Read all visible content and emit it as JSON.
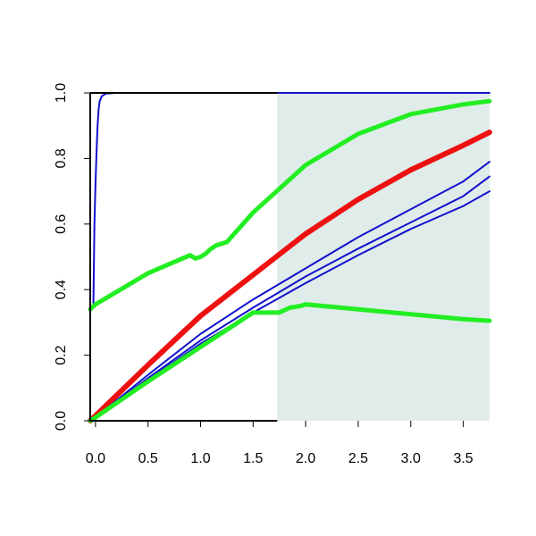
{
  "chart_data": {
    "type": "line",
    "title": "",
    "xlabel": "",
    "ylabel": "",
    "xlim": [
      -0.05,
      3.75
    ],
    "ylim": [
      0,
      1
    ],
    "x_ticks": [
      0.0,
      0.5,
      1.0,
      1.5,
      2.0,
      2.5,
      3.0,
      3.5
    ],
    "x_tick_labels": [
      "0.0",
      "0.5",
      "1.0",
      "1.5",
      "2.0",
      "2.5",
      "3.0",
      "3.5"
    ],
    "y_ticks": [
      0.0,
      0.2,
      0.4,
      0.6,
      0.8,
      1.0
    ],
    "y_tick_labels": [
      "0.0",
      "0.2",
      "0.4",
      "0.6",
      "0.8",
      "1.0"
    ],
    "grid": false,
    "shaded_region": {
      "x": [
        1.73,
        3.75
      ],
      "color": "#e0ecea"
    },
    "reference_line": {
      "y": 1.0,
      "x_range": [
        -0.05,
        1.73
      ],
      "color": "#000000"
    },
    "colors": {
      "red": "#ee1111",
      "green": "#22ee22",
      "blue": "#1111cc"
    },
    "series": [
      {
        "color": "#1111cc",
        "width": 2,
        "x": [
          -0.02,
          -0.01,
          0.0,
          0.01,
          0.02,
          0.03,
          0.04,
          0.06,
          0.1,
          0.2,
          0.5,
          1.0,
          2.0,
          3.0,
          3.75
        ],
        "y": [
          0.35,
          0.6,
          0.72,
          0.82,
          0.9,
          0.95,
          0.975,
          0.99,
          0.998,
          1.0,
          1.0,
          1.0,
          1.0,
          1.0,
          1.0
        ]
      },
      {
        "color": "#22ee22",
        "width": 5,
        "x": [
          -0.05,
          0.0,
          0.5,
          0.9,
          0.95,
          1.0,
          1.05,
          1.1,
          1.15,
          1.25,
          1.5,
          2.0,
          2.5,
          3.0,
          3.5,
          3.75
        ],
        "y": [
          0.34,
          0.355,
          0.45,
          0.505,
          0.495,
          0.5,
          0.51,
          0.525,
          0.535,
          0.545,
          0.635,
          0.78,
          0.875,
          0.935,
          0.965,
          0.975
        ]
      },
      {
        "color": "#ee1111",
        "width": 6,
        "x": [
          -0.05,
          0.0,
          0.5,
          1.0,
          1.5,
          2.0,
          2.5,
          3.0,
          3.5,
          3.75
        ],
        "y": [
          0.0,
          0.015,
          0.17,
          0.32,
          0.445,
          0.57,
          0.675,
          0.765,
          0.84,
          0.88
        ]
      },
      {
        "color": "#1111cc",
        "width": 2,
        "x": [
          -0.05,
          0.0,
          0.5,
          1.0,
          1.5,
          2.0,
          2.5,
          3.0,
          3.5,
          3.75
        ],
        "y": [
          0.0,
          0.01,
          0.14,
          0.265,
          0.37,
          0.465,
          0.56,
          0.645,
          0.73,
          0.79
        ]
      },
      {
        "color": "#1111cc",
        "width": 2,
        "x": [
          -0.05,
          0.0,
          0.5,
          1.0,
          1.5,
          2.0,
          2.5,
          3.0,
          3.5,
          3.75
        ],
        "y": [
          0.0,
          0.01,
          0.13,
          0.245,
          0.345,
          0.44,
          0.525,
          0.605,
          0.685,
          0.745
        ]
      },
      {
        "color": "#1111cc",
        "width": 2,
        "x": [
          -0.05,
          0.0,
          0.5,
          1.0,
          1.5,
          2.0,
          2.5,
          3.0,
          3.5,
          3.75
        ],
        "y": [
          0.0,
          0.01,
          0.125,
          0.235,
          0.33,
          0.42,
          0.505,
          0.585,
          0.655,
          0.7
        ]
      },
      {
        "color": "#22ee22",
        "width": 5,
        "x": [
          -0.05,
          0.0,
          0.5,
          1.0,
          1.5,
          1.75,
          1.85,
          1.95,
          2.0,
          2.5,
          3.0,
          3.5,
          3.75
        ],
        "y": [
          0.0,
          0.01,
          0.12,
          0.225,
          0.33,
          0.33,
          0.345,
          0.35,
          0.355,
          0.34,
          0.325,
          0.31,
          0.305
        ]
      }
    ]
  }
}
